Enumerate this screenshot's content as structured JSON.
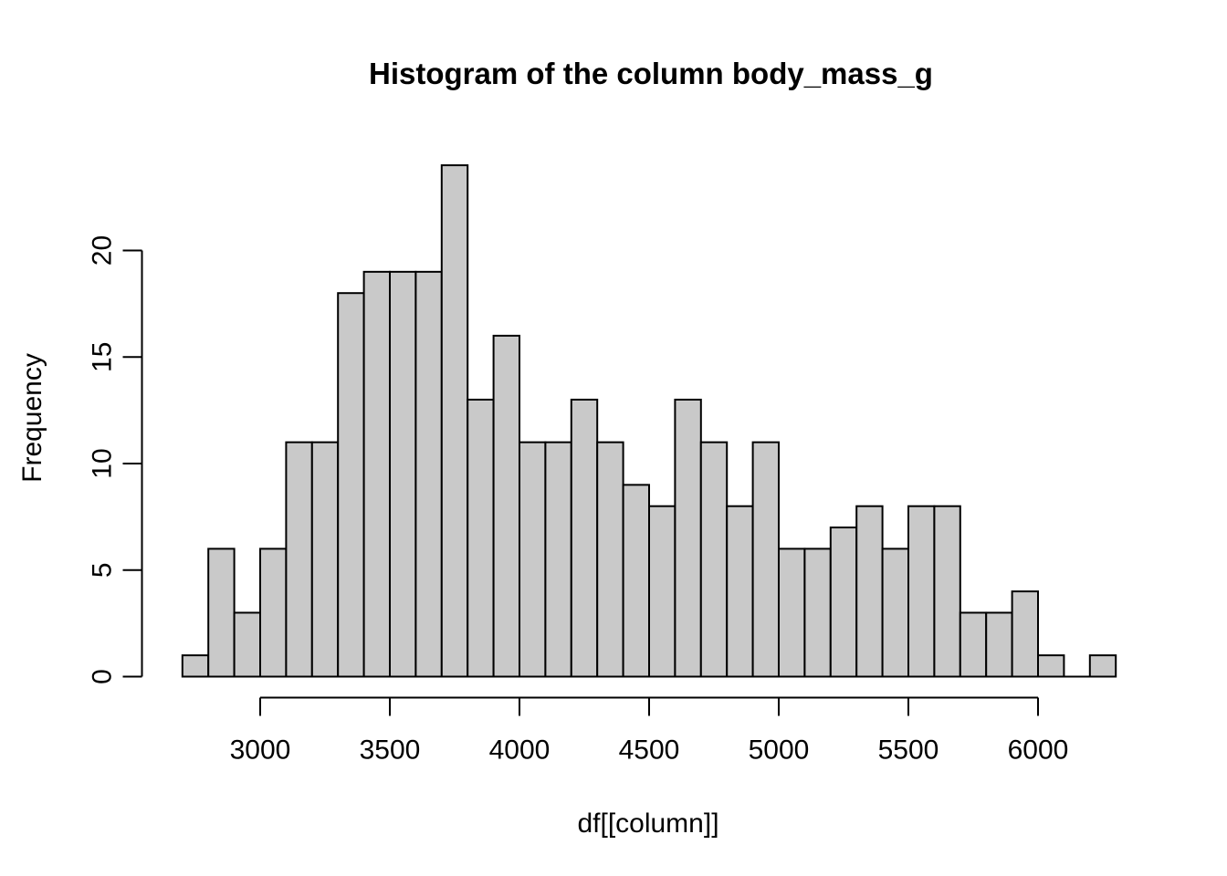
{
  "figure": {
    "title": "Histogram of the column body_mass_g",
    "x_axis_label": "df[[column]]",
    "y_axis_label": "Frequency"
  },
  "chart_data": {
    "type": "bar",
    "subtype": "histogram",
    "title": "Histogram of the column body_mass_g",
    "xlabel": "df[[column]]",
    "ylabel": "Frequency",
    "xlim": [
      2700,
      6300
    ],
    "ylim": [
      0,
      24
    ],
    "bin_start": 2700,
    "bin_width": 100,
    "bin_edges_note": "36 bins of 100 from 2700 to 6300",
    "counts": [
      1,
      6,
      3,
      6,
      11,
      11,
      18,
      19,
      19,
      19,
      24,
      13,
      16,
      11,
      11,
      13,
      11,
      9,
      8,
      13,
      11,
      8,
      11,
      6,
      6,
      7,
      8,
      6,
      8,
      8,
      3,
      3,
      4,
      1,
      0,
      1
    ],
    "x_ticks": [
      3000,
      3500,
      4000,
      4500,
      5000,
      5500,
      6000
    ],
    "y_ticks": [
      0,
      5,
      10,
      15,
      20
    ],
    "grid": "off",
    "legend": "none",
    "bar_fill": "#c9c9c9",
    "bar_stroke": "#000000",
    "axis_color": "#000000",
    "text_color": "#000000",
    "background": "#ffffff"
  }
}
